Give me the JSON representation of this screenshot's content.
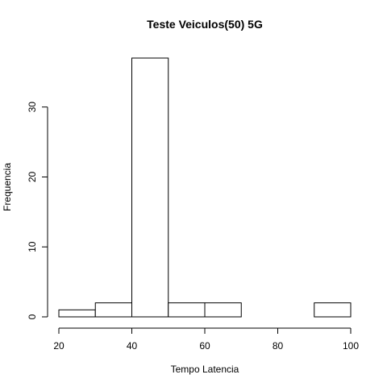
{
  "chart_data": {
    "type": "bar",
    "title": "Teste Veiculos(50) 5G",
    "xlabel": "Tempo Latencia",
    "ylabel": "Frequencia",
    "bins": [
      {
        "start": 20,
        "end": 30,
        "count": 1
      },
      {
        "start": 30,
        "end": 40,
        "count": 2
      },
      {
        "start": 40,
        "end": 50,
        "count": 37
      },
      {
        "start": 50,
        "end": 60,
        "count": 2
      },
      {
        "start": 60,
        "end": 70,
        "count": 2
      },
      {
        "start": 70,
        "end": 80,
        "count": 0
      },
      {
        "start": 80,
        "end": 90,
        "count": 0
      },
      {
        "start": 90,
        "end": 100,
        "count": 2
      }
    ],
    "x_ticks": [
      20,
      40,
      60,
      80,
      100
    ],
    "y_ticks": [
      0,
      10,
      20,
      30
    ],
    "xlim": [
      20,
      100
    ],
    "ylim": [
      0,
      37
    ],
    "grid": false,
    "legend": "none"
  }
}
